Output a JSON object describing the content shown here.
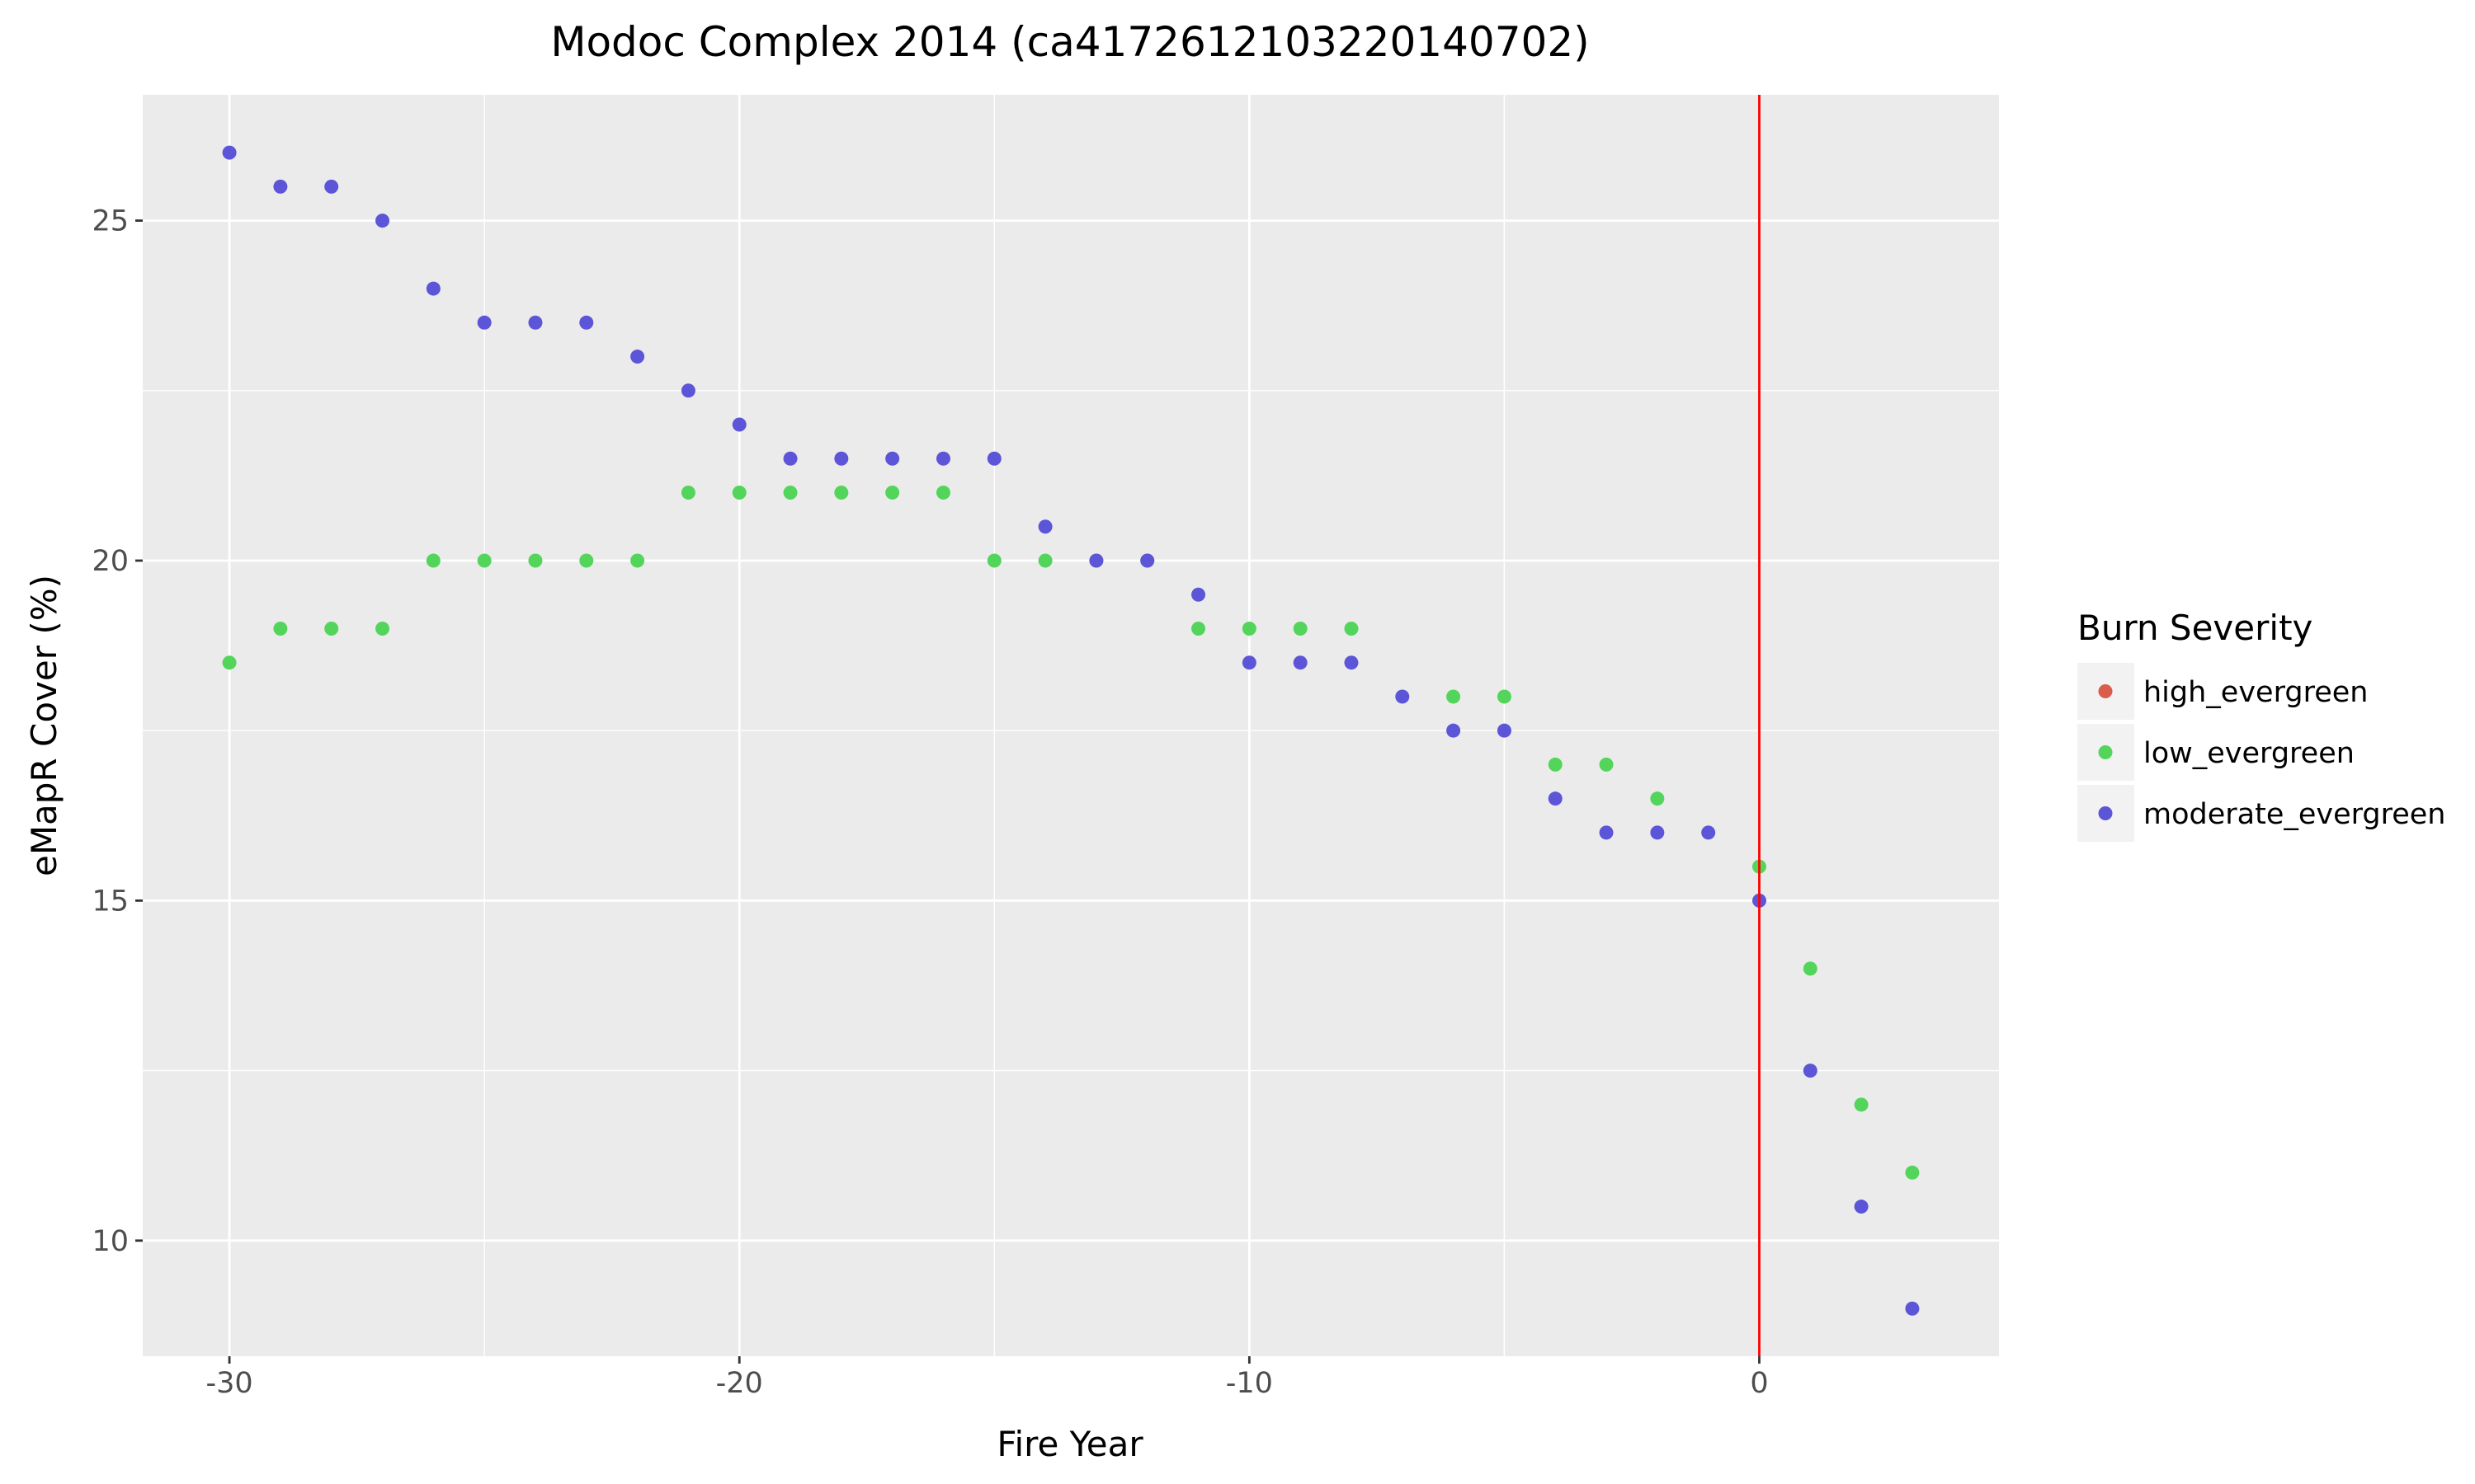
{
  "chart_data": {
    "type": "scatter",
    "title": "Modoc Complex 2014 (ca4172612103220140702)",
    "xlabel": "Fire Year",
    "ylabel": "eMapR Cover (%)",
    "xlim": [
      -31.7,
      4.7
    ],
    "ylim": [
      8.3,
      26.85
    ],
    "x_ticks": [
      -30,
      -20,
      -10,
      0
    ],
    "x_tick_labels": [
      "-30",
      "-20",
      "-10",
      "0"
    ],
    "y_ticks": [
      10,
      15,
      20,
      25
    ],
    "y_tick_labels": [
      "10",
      "15",
      "20",
      "25"
    ],
    "grid": true,
    "background": "#ebebeb",
    "fire_line": {
      "x": 0,
      "color": "#ff0000"
    },
    "legend": {
      "title": "Burn Severity",
      "position": "right"
    },
    "series": [
      {
        "name": "high_evergreen",
        "color": "#d95c4c",
        "x": [],
        "y": []
      },
      {
        "name": "low_evergreen",
        "color": "#53d55b",
        "x": [
          -30,
          -29,
          -28,
          -27,
          -26,
          -25,
          -24,
          -23,
          -22,
          -21,
          -20,
          -19,
          -18,
          -17,
          -16,
          -15,
          -14,
          -13,
          -12,
          -11,
          -10,
          -9,
          -8,
          -6,
          -5,
          -4,
          -3,
          -2,
          0,
          1,
          2,
          3
        ],
        "y": [
          18.5,
          19,
          19,
          19,
          20,
          20,
          20,
          20,
          20,
          21,
          21,
          21,
          21,
          21,
          21,
          20,
          20,
          20,
          20,
          19,
          19,
          19,
          19,
          18,
          18,
          17,
          17,
          16.5,
          15.5,
          14,
          12,
          11
        ]
      },
      {
        "name": "moderate_evergreen",
        "color": "#5c55d8",
        "x": [
          -30,
          -29,
          -28,
          -27,
          -26,
          -25,
          -24,
          -23,
          -22,
          -21,
          -20,
          -19,
          -18,
          -17,
          -16,
          -15,
          -14,
          -13,
          -12,
          -11,
          -10,
          -9,
          -8,
          -7,
          -6,
          -5,
          -4,
          -3,
          -2,
          -1,
          0,
          1,
          2,
          3
        ],
        "y": [
          26,
          25.5,
          25.5,
          25,
          24,
          23.5,
          23.5,
          23.5,
          23,
          22.5,
          22,
          21.5,
          21.5,
          21.5,
          21.5,
          21.5,
          20.5,
          20,
          20,
          19.5,
          18.5,
          18.5,
          18.5,
          18,
          17.5,
          17.5,
          16.5,
          16,
          16,
          16,
          15,
          12.5,
          10.5,
          9
        ]
      }
    ]
  }
}
